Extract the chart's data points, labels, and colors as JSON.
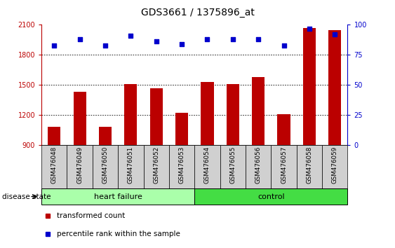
{
  "title": "GDS3661 / 1375896_at",
  "samples": [
    "GSM476048",
    "GSM476049",
    "GSM476050",
    "GSM476051",
    "GSM476052",
    "GSM476053",
    "GSM476054",
    "GSM476055",
    "GSM476056",
    "GSM476057",
    "GSM476058",
    "GSM476059"
  ],
  "bar_values": [
    1080,
    1430,
    1080,
    1510,
    1470,
    1220,
    1530,
    1510,
    1580,
    1210,
    2070,
    2050
  ],
  "dot_values": [
    83,
    88,
    83,
    91,
    86,
    84,
    88,
    88,
    88,
    83,
    97,
    92
  ],
  "groups": [
    {
      "label": "heart failure",
      "start": 0,
      "end": 6,
      "color": "#aaffaa"
    },
    {
      "label": "control",
      "start": 6,
      "end": 12,
      "color": "#44dd44"
    }
  ],
  "bar_color": "#bb0000",
  "dot_color": "#0000cc",
  "ylim_left": [
    900,
    2100
  ],
  "ylim_right": [
    0,
    100
  ],
  "yticks_left": [
    900,
    1200,
    1500,
    1800,
    2100
  ],
  "yticks_right": [
    0,
    25,
    50,
    75,
    100
  ],
  "grid_values": [
    1200,
    1500,
    1800
  ],
  "legend_items": [
    {
      "label": "transformed count",
      "color": "#bb0000"
    },
    {
      "label": "percentile rank within the sample",
      "color": "#0000cc"
    }
  ],
  "disease_state_label": "disease state",
  "bar_width": 0.5,
  "background_color": "#ffffff",
  "sample_box_color": "#d0d0d0",
  "tick_label_fontsize": 7,
  "title_fontsize": 10
}
